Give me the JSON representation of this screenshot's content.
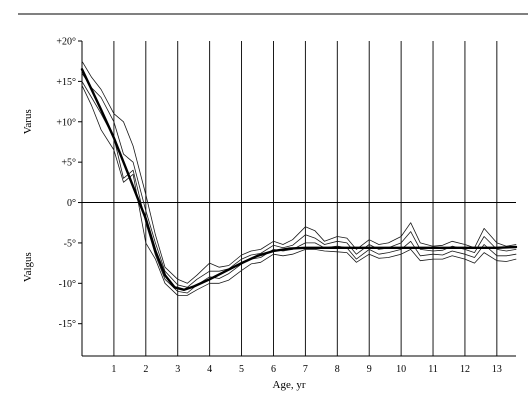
{
  "chart_data": {
    "type": "line",
    "title": "",
    "xlabel": "Age, yr",
    "ylabel_upper": "Varus",
    "ylabel_lower": "Valgus",
    "xlim": [
      0,
      13.6
    ],
    "ylim": [
      -19,
      20
    ],
    "x_ticks": [
      1,
      2,
      3,
      4,
      5,
      6,
      7,
      8,
      9,
      10,
      11,
      12,
      13
    ],
    "x_tick_labels": [
      "1",
      "2",
      "3",
      "4",
      "5",
      "6",
      "7",
      "8",
      "9",
      "10",
      "11",
      "12",
      "13"
    ],
    "y_ticks": [
      20,
      15,
      10,
      5,
      0,
      -5,
      -10,
      -15
    ],
    "y_tick_labels": [
      "+20°",
      "+15°",
      "+10°",
      "+5°",
      "0°",
      "-5°",
      "-10°",
      "-15°"
    ],
    "grid": "vertical lines at each year",
    "series": [
      {
        "role": "mean",
        "x": [
          0,
          0.3,
          0.6,
          1,
          1.4,
          1.8,
          2,
          2.3,
          2.6,
          2.9,
          3.2,
          3.5,
          4,
          4.5,
          5,
          5.5,
          6,
          6.5,
          7,
          8,
          9,
          10,
          11,
          12,
          13,
          13.6
        ],
        "values": [
          16.5,
          14,
          11.5,
          8,
          4,
          0,
          -2,
          -6,
          -9,
          -10.5,
          -10.8,
          -10.4,
          -9.5,
          -8.5,
          -7.5,
          -6.6,
          -6,
          -5.7,
          -5.6,
          -5.6,
          -5.6,
          -5.6,
          -5.6,
          -5.6,
          -5.6,
          -5.5
        ]
      },
      {
        "role": "individual",
        "x": [
          0,
          0.3,
          0.6,
          1,
          1.3,
          1.6,
          2,
          2.3,
          2.6,
          3,
          3.3,
          3.6,
          4,
          4.3,
          4.6,
          5,
          5.3,
          5.6,
          6,
          6.3,
          6.6,
          7,
          7.3,
          7.6,
          8,
          8.3,
          8.6,
          9,
          9.3,
          9.6,
          10,
          10.3,
          10.6,
          11,
          11.3,
          11.6,
          12,
          12.3,
          12.6,
          13,
          13.3,
          13.6
        ],
        "values": [
          17.5,
          15.5,
          14,
          11,
          10,
          7,
          1,
          -4,
          -8,
          -9.5,
          -10,
          -9,
          -7.5,
          -8,
          -7.8,
          -6.5,
          -6,
          -5.8,
          -4.8,
          -5.2,
          -4.6,
          -3,
          -3.5,
          -4.8,
          -4.2,
          -4.4,
          -5.8,
          -4.6,
          -5.2,
          -5,
          -4.2,
          -2.5,
          -5,
          -5.4,
          -5.3,
          -4.8,
          -5.2,
          -5.6,
          -3.2,
          -5,
          -5.4,
          -5.2
        ]
      },
      {
        "role": "individual",
        "x": [
          0,
          0.3,
          0.6,
          1,
          1.3,
          1.6,
          2,
          2.3,
          2.6,
          3,
          3.3,
          3.6,
          4,
          4.3,
          4.6,
          5,
          5.3,
          5.6,
          6,
          6.3,
          6.6,
          7,
          7.3,
          7.6,
          8,
          8.3,
          8.6,
          9,
          9.3,
          9.6,
          10,
          10.3,
          10.6,
          11,
          11.3,
          11.6,
          12,
          12.3,
          12.6,
          13,
          13.3,
          13.6
        ],
        "values": [
          16,
          14.2,
          13,
          10,
          6,
          5,
          -1,
          -5,
          -8.5,
          -10.2,
          -10.5,
          -9.5,
          -8.5,
          -8.5,
          -8.2,
          -7,
          -6.5,
          -6.3,
          -5.3,
          -5.6,
          -5.3,
          -4,
          -4.4,
          -5.2,
          -4.8,
          -5,
          -6.4,
          -5.2,
          -5.8,
          -5.6,
          -5,
          -3.6,
          -5.8,
          -6,
          -5.9,
          -5.4,
          -5.8,
          -6.2,
          -4.2,
          -5.8,
          -6,
          -5.8
        ]
      },
      {
        "role": "individual",
        "x": [
          0,
          0.3,
          0.6,
          1,
          1.3,
          1.6,
          2,
          2.3,
          2.6,
          3,
          3.3,
          3.6,
          4,
          4.3,
          4.6,
          5,
          5.3,
          5.6,
          6,
          6.3,
          6.6,
          7,
          7.3,
          7.6,
          8,
          8.3,
          8.6,
          9,
          9.3,
          9.6,
          10,
          10.3,
          10.6,
          11,
          11.3,
          11.6,
          12,
          12.3,
          12.6,
          13,
          13.3,
          13.6
        ],
        "values": [
          15,
          13,
          11,
          8,
          3,
          4,
          -2.5,
          -6.5,
          -9.5,
          -11,
          -11.2,
          -10.2,
          -9.2,
          -9.4,
          -8.8,
          -7.6,
          -7,
          -6.8,
          -5.8,
          -6,
          -5.8,
          -5,
          -5,
          -5.6,
          -5.4,
          -5.6,
          -7,
          -5.8,
          -6.4,
          -6.2,
          -5.8,
          -4.8,
          -6.6,
          -6.4,
          -6.5,
          -6,
          -6.4,
          -6.8,
          -5.2,
          -6.6,
          -6.6,
          -6.4
        ]
      },
      {
        "role": "individual",
        "x": [
          0,
          0.3,
          0.6,
          1,
          1.3,
          1.6,
          2,
          2.3,
          2.6,
          3,
          3.3,
          3.6,
          4,
          4.3,
          4.6,
          5,
          5.3,
          5.6,
          6,
          6.3,
          6.6,
          7,
          7.3,
          7.6,
          8,
          8.3,
          8.6,
          9,
          9.3,
          9.6,
          10,
          10.3,
          10.6,
          11,
          11.3,
          11.6,
          12,
          12.3,
          12.6,
          13,
          13.3,
          13.6
        ],
        "values": [
          14.5,
          12,
          9,
          6.5,
          2.5,
          3.5,
          -5,
          -7,
          -10,
          -11.5,
          -11.5,
          -10.8,
          -10,
          -10,
          -9.6,
          -8.4,
          -7.6,
          -7.4,
          -6.4,
          -6.6,
          -6.4,
          -5.8,
          -5.8,
          -6,
          -6.1,
          -6.2,
          -7.4,
          -6.4,
          -6.9,
          -6.8,
          -6.4,
          -5.8,
          -7.2,
          -7,
          -7,
          -6.6,
          -7,
          -7.5,
          -6.2,
          -7.2,
          -7.3,
          -7
        ]
      }
    ]
  }
}
